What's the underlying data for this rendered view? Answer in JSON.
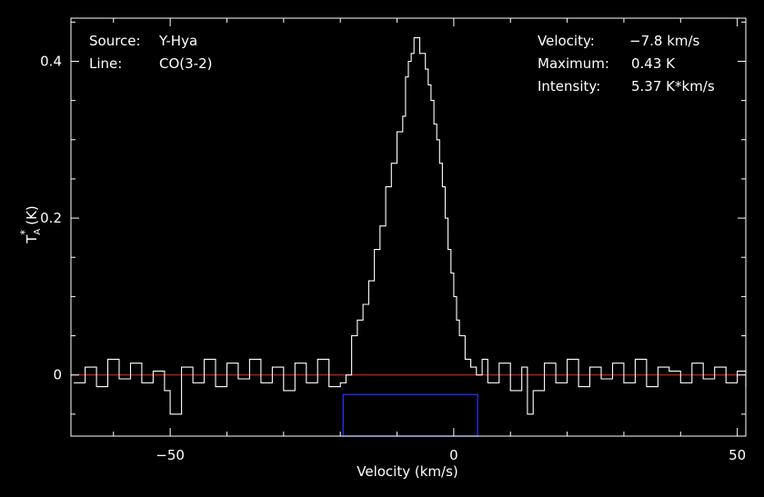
{
  "info": {
    "source_label": "Source:",
    "source_value": "Y-Hya",
    "line_label": "Line:",
    "line_value": "CO(3-2)",
    "velocity_label": "Velocity:",
    "velocity_value": "−7.8 km/s",
    "maximum_label": "Maximum:",
    "maximum_value": "0.43 K",
    "intensity_label": "Intensity:",
    "intensity_value": "5.37 K*km/s"
  },
  "chart_data": {
    "type": "line",
    "xlabel": "Velocity (km/s)",
    "ylabel_main": "T",
    "ylabel_sub": "A",
    "ylabel_sup": "*",
    "ylabel_unit": "(K)",
    "xlim": [
      -67.5,
      51.5
    ],
    "ylim": [
      -0.078,
      0.455
    ],
    "x_ticks": [
      -50,
      0,
      50
    ],
    "x_tick_labels": [
      "−50",
      "0",
      "50"
    ],
    "y_ticks": [
      0,
      0.2,
      0.4
    ],
    "y_tick_labels": [
      "0",
      "0.2",
      "0.4"
    ],
    "baseline": {
      "value": 0,
      "color": "#cc2a1a"
    },
    "integration_window": {
      "x_start": -19.5,
      "x_end": 4.2,
      "y_bottom": -0.078,
      "y_top": -0.025,
      "color": "#1f2fd8"
    },
    "line_color": "#ffffff",
    "series": [
      {
        "x": [
          -67.0,
          -65.0,
          -63.0,
          -61.0,
          -59.0,
          -57.0,
          -55.0,
          -53.0,
          -51.0,
          -50.0,
          -48.0,
          -46.0,
          -44.0,
          -42.0,
          -40.0,
          -38.0,
          -36.0,
          -34.0,
          -32.0,
          -30.0,
          -28.0,
          -26.0,
          -24.0,
          -22.0,
          -20.0,
          -19.0,
          -18.0,
          -17.0,
          -16.0,
          -15.0,
          -14.0,
          -13.0,
          -12.0,
          -11.0,
          -10.0,
          -9.0,
          -8.5,
          -8.0,
          -7.5,
          -7.0,
          -6.5,
          -6.0,
          -5.0,
          -4.5,
          -4.0,
          -3.5,
          -3.0,
          -2.5,
          -2.0,
          -1.5,
          -1.0,
          -0.5,
          0.0,
          0.5,
          1.0,
          2.0,
          3.0,
          4.0,
          5.0,
          6.0,
          8.0,
          10.0,
          12.0,
          13.0,
          14.0,
          16.0,
          18.0,
          20.0,
          22.0,
          24.0,
          26.0,
          28.0,
          30.0,
          32.0,
          34.0,
          36.0,
          38.0,
          40.0,
          42.0,
          44.0,
          46.0,
          48.0,
          50.0,
          51.5
        ],
        "y": [
          -0.01,
          0.01,
          -0.015,
          0.02,
          -0.005,
          0.015,
          -0.01,
          0.005,
          -0.02,
          -0.05,
          0.01,
          -0.01,
          0.02,
          -0.015,
          0.015,
          -0.005,
          0.02,
          -0.01,
          0.01,
          -0.02,
          0.015,
          -0.01,
          0.02,
          -0.015,
          -0.01,
          0.0,
          0.05,
          0.07,
          0.09,
          0.12,
          0.16,
          0.19,
          0.24,
          0.27,
          0.31,
          0.33,
          0.38,
          0.4,
          0.41,
          0.43,
          0.43,
          0.41,
          0.39,
          0.37,
          0.35,
          0.32,
          0.3,
          0.27,
          0.24,
          0.2,
          0.16,
          0.13,
          0.1,
          0.07,
          0.05,
          0.02,
          0.01,
          0.0,
          0.02,
          -0.01,
          0.015,
          -0.02,
          0.01,
          -0.05,
          -0.02,
          0.015,
          -0.01,
          0.02,
          -0.015,
          0.01,
          -0.005,
          0.015,
          -0.01,
          0.02,
          -0.015,
          0.01,
          0.005,
          -0.01,
          0.015,
          -0.005,
          0.01,
          -0.01,
          0.005,
          -0.015
        ]
      }
    ]
  }
}
